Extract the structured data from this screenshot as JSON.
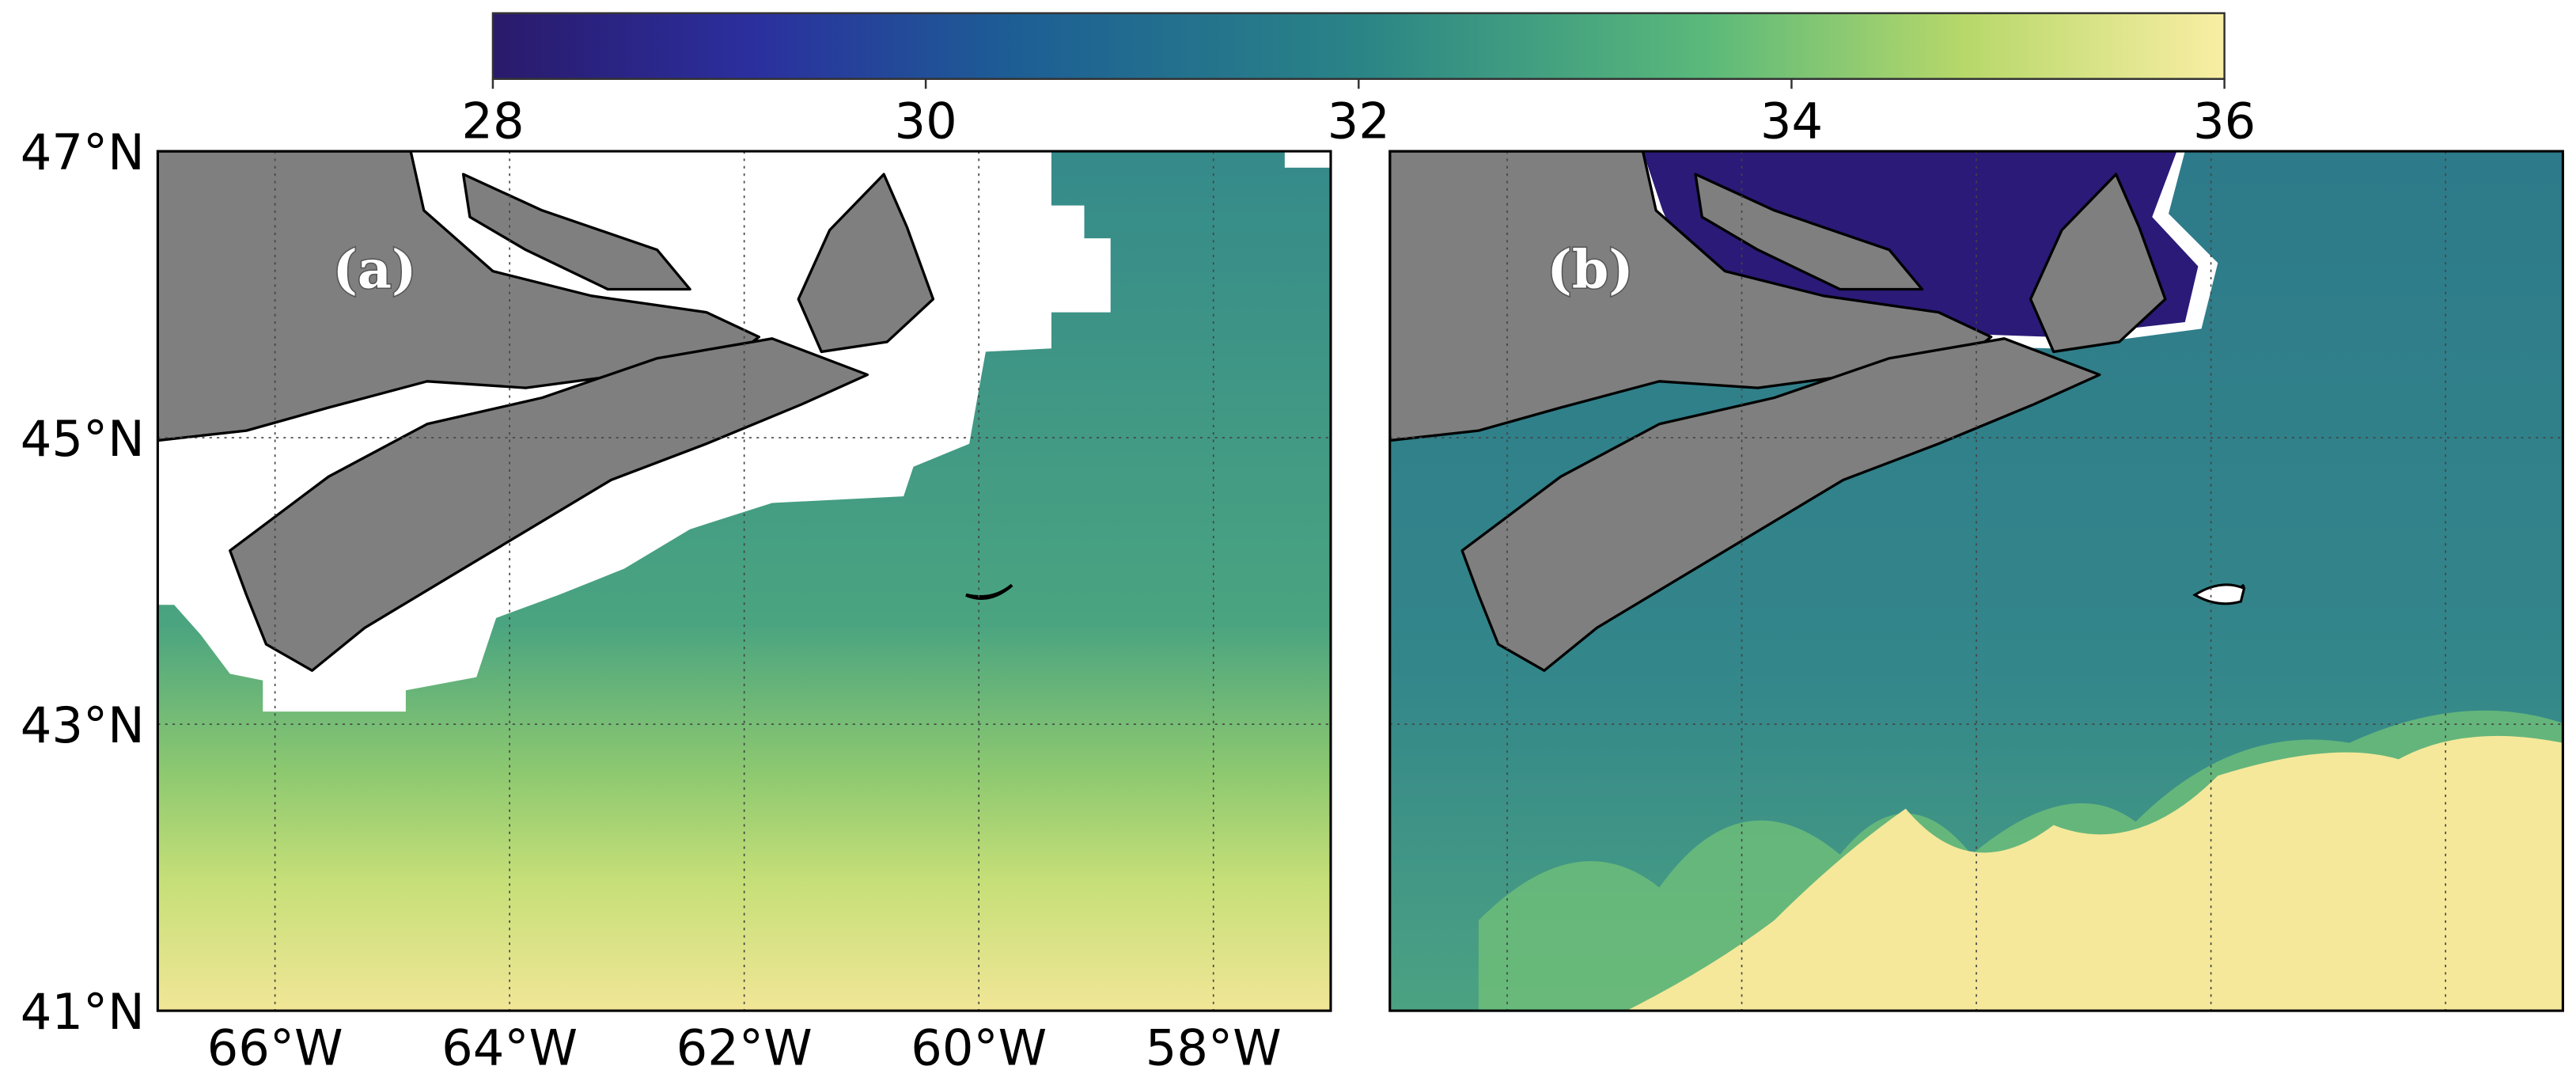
{
  "colorbar": {
    "range": [
      28,
      36
    ],
    "ticks": [
      28,
      30,
      32,
      34,
      36
    ]
  },
  "map": {
    "xlim": [
      -67,
      -57
    ],
    "ylim": [
      41,
      47
    ],
    "lat_ticks": [
      {
        "value": 41,
        "label": "41°N"
      },
      {
        "value": 43,
        "label": "43°N"
      },
      {
        "value": 45,
        "label": "45°N"
      },
      {
        "value": 47,
        "label": "47°N"
      }
    ],
    "lon_ticks": [
      {
        "value": -66,
        "label": "66°W"
      },
      {
        "value": -64,
        "label": "64°W"
      },
      {
        "value": -62,
        "label": "62°W"
      },
      {
        "value": -60,
        "label": "60°W"
      },
      {
        "value": -58,
        "label": "58°W"
      }
    ]
  },
  "panels": [
    {
      "label": "(a)"
    },
    {
      "label": "(b)"
    }
  ]
}
